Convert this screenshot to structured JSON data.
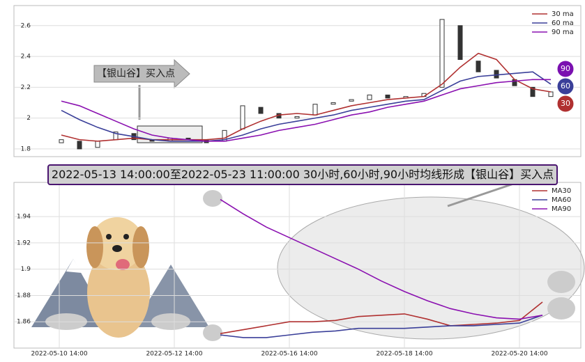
{
  "chart_data": [
    {
      "type": "candlestick",
      "annotation": "【银山谷】买入点",
      "candle_color": "#333333",
      "open": [
        1.84,
        1.85,
        1.81,
        1.86,
        1.9,
        1.86,
        1.85,
        1.87,
        1.86,
        1.85,
        1.93,
        2.07,
        2.03,
        2.0,
        2.02,
        2.09,
        2.11,
        2.12,
        2.15,
        2.13,
        2.14,
        2.2,
        2.6,
        2.37,
        2.31,
        2.25,
        2.2,
        2.14
      ],
      "close": [
        1.86,
        1.8,
        1.85,
        1.91,
        1.86,
        1.85,
        1.87,
        1.86,
        1.84,
        1.92,
        2.08,
        2.03,
        2.0,
        2.01,
        2.09,
        2.1,
        2.12,
        2.15,
        2.13,
        2.14,
        2.16,
        2.64,
        2.38,
        2.3,
        2.26,
        2.21,
        2.14,
        2.17
      ],
      "series": [
        {
          "name": "30 ma",
          "color": "#b03030",
          "values": [
            1.89,
            1.86,
            1.85,
            1.86,
            1.87,
            1.86,
            1.86,
            1.86,
            1.86,
            1.87,
            1.93,
            1.98,
            2.02,
            2.03,
            2.02,
            2.05,
            2.08,
            2.1,
            2.12,
            2.13,
            2.14,
            2.22,
            2.33,
            2.42,
            2.38,
            2.25,
            2.19,
            2.17
          ]
        },
        {
          "name": "60 ma",
          "color": "#3a3f99",
          "values": [
            2.05,
            1.99,
            1.94,
            1.9,
            1.88,
            1.86,
            1.85,
            1.85,
            1.85,
            1.86,
            1.89,
            1.93,
            1.96,
            1.98,
            2.0,
            2.02,
            2.05,
            2.07,
            2.09,
            2.11,
            2.12,
            2.18,
            2.24,
            2.27,
            2.28,
            2.29,
            2.3,
            2.22
          ]
        },
        {
          "name": "90 ma",
          "color": "#8a10b0",
          "values": [
            2.11,
            2.08,
            2.03,
            1.98,
            1.93,
            1.89,
            1.87,
            1.86,
            1.85,
            1.85,
            1.87,
            1.89,
            1.92,
            1.94,
            1.96,
            1.99,
            2.02,
            2.04,
            2.07,
            2.09,
            2.11,
            2.15,
            2.19,
            2.21,
            2.23,
            2.24,
            2.25,
            2.25
          ]
        }
      ],
      "badges": [
        {
          "label": "90",
          "color": "#7a10b0"
        },
        {
          "label": "60",
          "color": "#3a3f99"
        },
        {
          "label": "30",
          "color": "#b03030"
        }
      ],
      "ylim": [
        1.75,
        2.73
      ],
      "yticks": [
        1.8,
        2.0,
        2.2,
        2.4,
        2.6
      ],
      "grid": true,
      "legend": "upper right"
    },
    {
      "type": "line",
      "title": "2022-05-13 14:00:00至2022-05-23 11:00:00 30小时,60小时,90小时均线形成【银山谷】买入点",
      "categories": [
        "2022-05-10 14:00",
        null,
        null,
        null,
        null,
        "2022-05-12 14:00",
        null,
        null,
        null,
        null,
        "2022-05-16 14:00",
        null,
        null,
        null,
        null,
        "2022-05-18 14:00",
        null,
        null,
        null,
        null,
        "2022-05-20 14:00",
        null
      ],
      "series": [
        {
          "name": "MA30",
          "color": "#b03030",
          "values": [
            null,
            null,
            null,
            null,
            null,
            null,
            null,
            1.851,
            1.854,
            1.857,
            1.86,
            1.86,
            1.861,
            1.864,
            1.865,
            1.866,
            1.862,
            1.857,
            1.858,
            1.859,
            1.861,
            1.875
          ]
        },
        {
          "name": "MA60",
          "color": "#3a3f99",
          "values": [
            null,
            null,
            null,
            null,
            null,
            null,
            null,
            1.85,
            1.848,
            1.848,
            1.85,
            1.852,
            1.853,
            1.855,
            1.855,
            1.855,
            1.856,
            1.857,
            1.857,
            1.858,
            1.859,
            1.865
          ]
        },
        {
          "name": "MA90",
          "color": "#8a10b0",
          "values": [
            null,
            null,
            null,
            null,
            null,
            null,
            null,
            1.953,
            1.942,
            1.932,
            1.924,
            1.916,
            1.908,
            1.9,
            1.891,
            1.883,
            1.876,
            1.87,
            1.866,
            1.863,
            1.862,
            1.865
          ]
        }
      ],
      "ylim": [
        1.84,
        1.966
      ],
      "yticks": [
        1.86,
        1.88,
        1.9,
        1.92,
        1.94
      ],
      "grid": true,
      "legend": "upper right"
    }
  ]
}
